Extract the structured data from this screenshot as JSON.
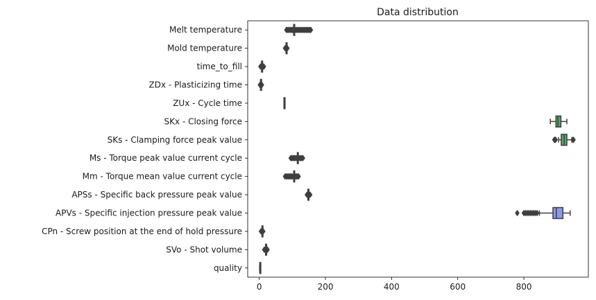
{
  "chart_data": {
    "type": "boxplot",
    "orientation": "horizontal",
    "title": "Data distribution",
    "xlabel": "",
    "ylabel": "",
    "xlim": [
      -35,
      995
    ],
    "xticks": [
      0,
      200,
      400,
      600,
      800
    ],
    "xtick_labels": [
      "0",
      "200",
      "400",
      "600",
      "800"
    ],
    "grid": false,
    "legend": "none",
    "series": [
      {
        "name": "Melt temperature",
        "color": "#4c72b0",
        "min": 82,
        "q1": 104,
        "median": 106,
        "q3": 107,
        "max": 109,
        "outliers_low": [
          82,
          85,
          88,
          91,
          94,
          97,
          100,
          102
        ],
        "outliers_high": [
          112,
          115,
          118,
          121,
          124,
          127,
          130,
          133,
          136,
          139,
          142,
          145,
          148,
          151,
          154,
          156
        ]
      },
      {
        "name": "Mold temperature",
        "color": "#dd8452",
        "min": 81,
        "q1": 81,
        "median": 81,
        "q3": 82,
        "max": 82,
        "outliers_low": [
          78,
          79
        ],
        "outliers_high": [
          84,
          85
        ]
      },
      {
        "name": "time_to_fill",
        "color": "#55a868",
        "min": 6.5,
        "q1": 7,
        "median": 7,
        "q3": 7.5,
        "max": 8,
        "outliers_low": [
          3.5
        ],
        "outliers_high": [
          10,
          12,
          14
        ]
      },
      {
        "name": "ZDx - Plasticizing time",
        "color": "#c44e52",
        "min": 3.5,
        "q1": 3.8,
        "median": 4,
        "q3": 4.2,
        "max": 4.5,
        "outliers_low": [
          2
        ],
        "outliers_high": [
          6,
          7,
          8
        ]
      },
      {
        "name": "ZUx - Cycle time",
        "color": "#8172b3",
        "min": 74.7,
        "q1": 74.8,
        "median": 74.8,
        "q3": 74.9,
        "max": 75,
        "outliers_low": [],
        "outliers_high": []
      },
      {
        "name": "SKx - Closing force",
        "color": "#55a868",
        "min": 880,
        "q1": 897,
        "median": 903,
        "q3": 912,
        "max": 930,
        "outliers_low": [],
        "outliers_high": []
      },
      {
        "name": "SKs - Clamping force peak value",
        "color": "#55a868",
        "min": 905,
        "q1": 913,
        "median": 922,
        "q3": 930,
        "max": 945,
        "outliers_low": [
          892,
          894,
          896
        ],
        "outliers_high": [
          948,
          950
        ]
      },
      {
        "name": "Ms - Torque peak value current cycle",
        "color": "#8c8c8c",
        "min": 113,
        "q1": 115,
        "median": 116,
        "q3": 118,
        "max": 120,
        "outliers_low": [
          95,
          98,
          101,
          104,
          107,
          110
        ],
        "outliers_high": [
          123,
          126,
          129,
          132
        ]
      },
      {
        "name": "Mm - Torque mean value current cycle",
        "color": "#4c72b0",
        "min": 102,
        "q1": 104,
        "median": 105,
        "q3": 106,
        "max": 107,
        "outliers_low": [
          78,
          81,
          84,
          87,
          90,
          93,
          96,
          99
        ],
        "outliers_high": [
          110,
          113,
          116,
          119
        ]
      },
      {
        "name": "APSs - Specific back pressure peak value",
        "color": "#dd8452",
        "min": 146,
        "q1": 147,
        "median": 148,
        "q3": 149,
        "max": 150,
        "outliers_low": [
          144
        ],
        "outliers_high": [
          152,
          154
        ]
      },
      {
        "name": "APVs - Specific injection pressure peak value",
        "color": "#8c9ae8",
        "min": 847,
        "q1": 888,
        "median": 898,
        "q3": 918,
        "max": 940,
        "outliers_low": [
          780,
          800,
          805,
          810,
          815,
          820,
          825,
          830,
          835,
          840
        ],
        "outliers_high": []
      },
      {
        "name": "CPn - Screw position at the end of hold pressure",
        "color": "#c44e52",
        "min": 7,
        "q1": 8,
        "median": 8.5,
        "q3": 9,
        "max": 10,
        "outliers_low": [
          5
        ],
        "outliers_high": [
          11,
          12
        ]
      },
      {
        "name": "SVo - Shot volume",
        "color": "#8172b3",
        "min": 18,
        "q1": 19,
        "median": 20,
        "q3": 21,
        "max": 22,
        "outliers_low": [
          15,
          16
        ],
        "outliers_high": [
          24,
          25
        ]
      },
      {
        "name": "quality",
        "color": "#937860",
        "min": 1,
        "q1": 1.5,
        "median": 2,
        "q3": 2.5,
        "max": 3,
        "outliers_low": [],
        "outliers_high": []
      }
    ]
  }
}
